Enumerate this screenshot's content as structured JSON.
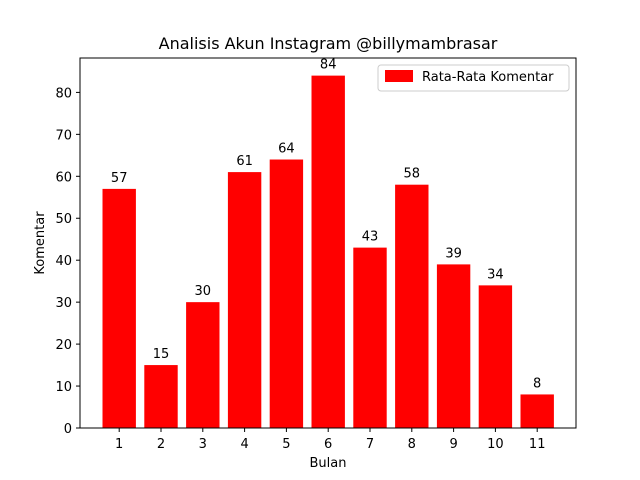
{
  "chart_data": {
    "type": "bar",
    "title": "Analisis Akun Instagram @billymambrasar",
    "xlabel": "Bulan",
    "ylabel": "Komentar",
    "categories": [
      "1",
      "2",
      "3",
      "4",
      "5",
      "6",
      "7",
      "8",
      "9",
      "10",
      "11"
    ],
    "series": [
      {
        "name": "Rata-Rata Komentar",
        "color": "#ff0000",
        "values": [
          57,
          15,
          30,
          61,
          64,
          84,
          43,
          58,
          39,
          34,
          8
        ]
      }
    ],
    "ylim": [
      0,
      88.2
    ],
    "yticks": [
      0,
      10,
      20,
      30,
      40,
      50,
      60,
      70,
      80
    ],
    "grid": false,
    "legend_position": "top-right",
    "show_data_labels": true
  }
}
